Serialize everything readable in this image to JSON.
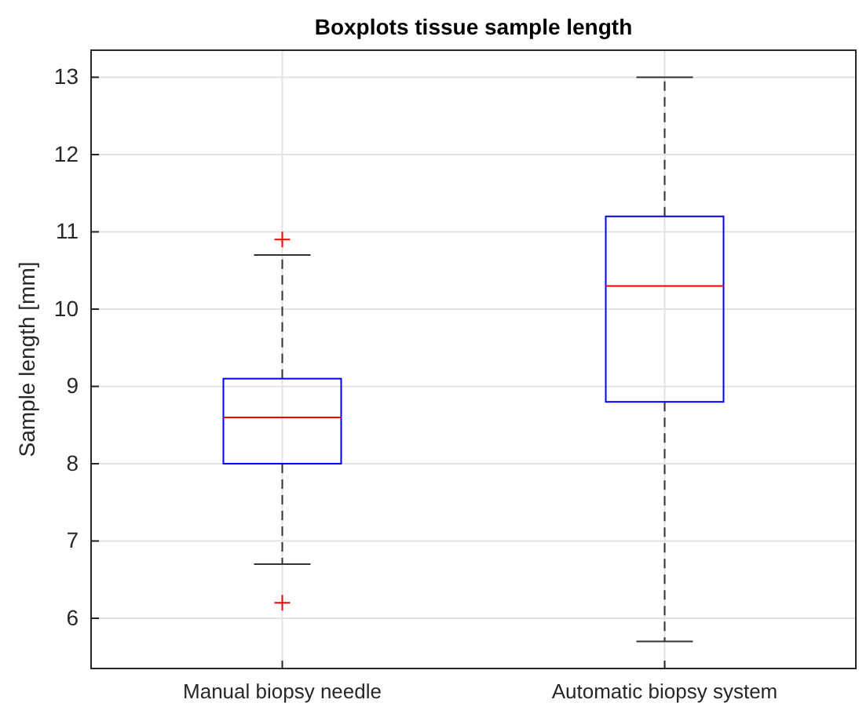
{
  "chart_data": {
    "type": "box",
    "title": "Boxplots tissue sample length",
    "ylabel": "Sample length [mm]",
    "categories": [
      "Manual biopsy needle",
      "Automatic biopsy system"
    ],
    "boxes": [
      {
        "low": 6.7,
        "q1": 8.0,
        "median": 8.6,
        "q3": 9.1,
        "high": 10.7,
        "outliers": [
          6.2,
          10.9
        ]
      },
      {
        "low": 5.7,
        "q1": 8.8,
        "median": 10.3,
        "q3": 11.2,
        "high": 13.0
      }
    ],
    "color": "#0000ff",
    "marker": "cross",
    "line_style": "dashed",
    "ylim": [
      5.35,
      13.35
    ],
    "yticks": [
      6,
      7,
      8,
      9,
      10,
      11,
      12,
      13
    ],
    "grid": true
  }
}
